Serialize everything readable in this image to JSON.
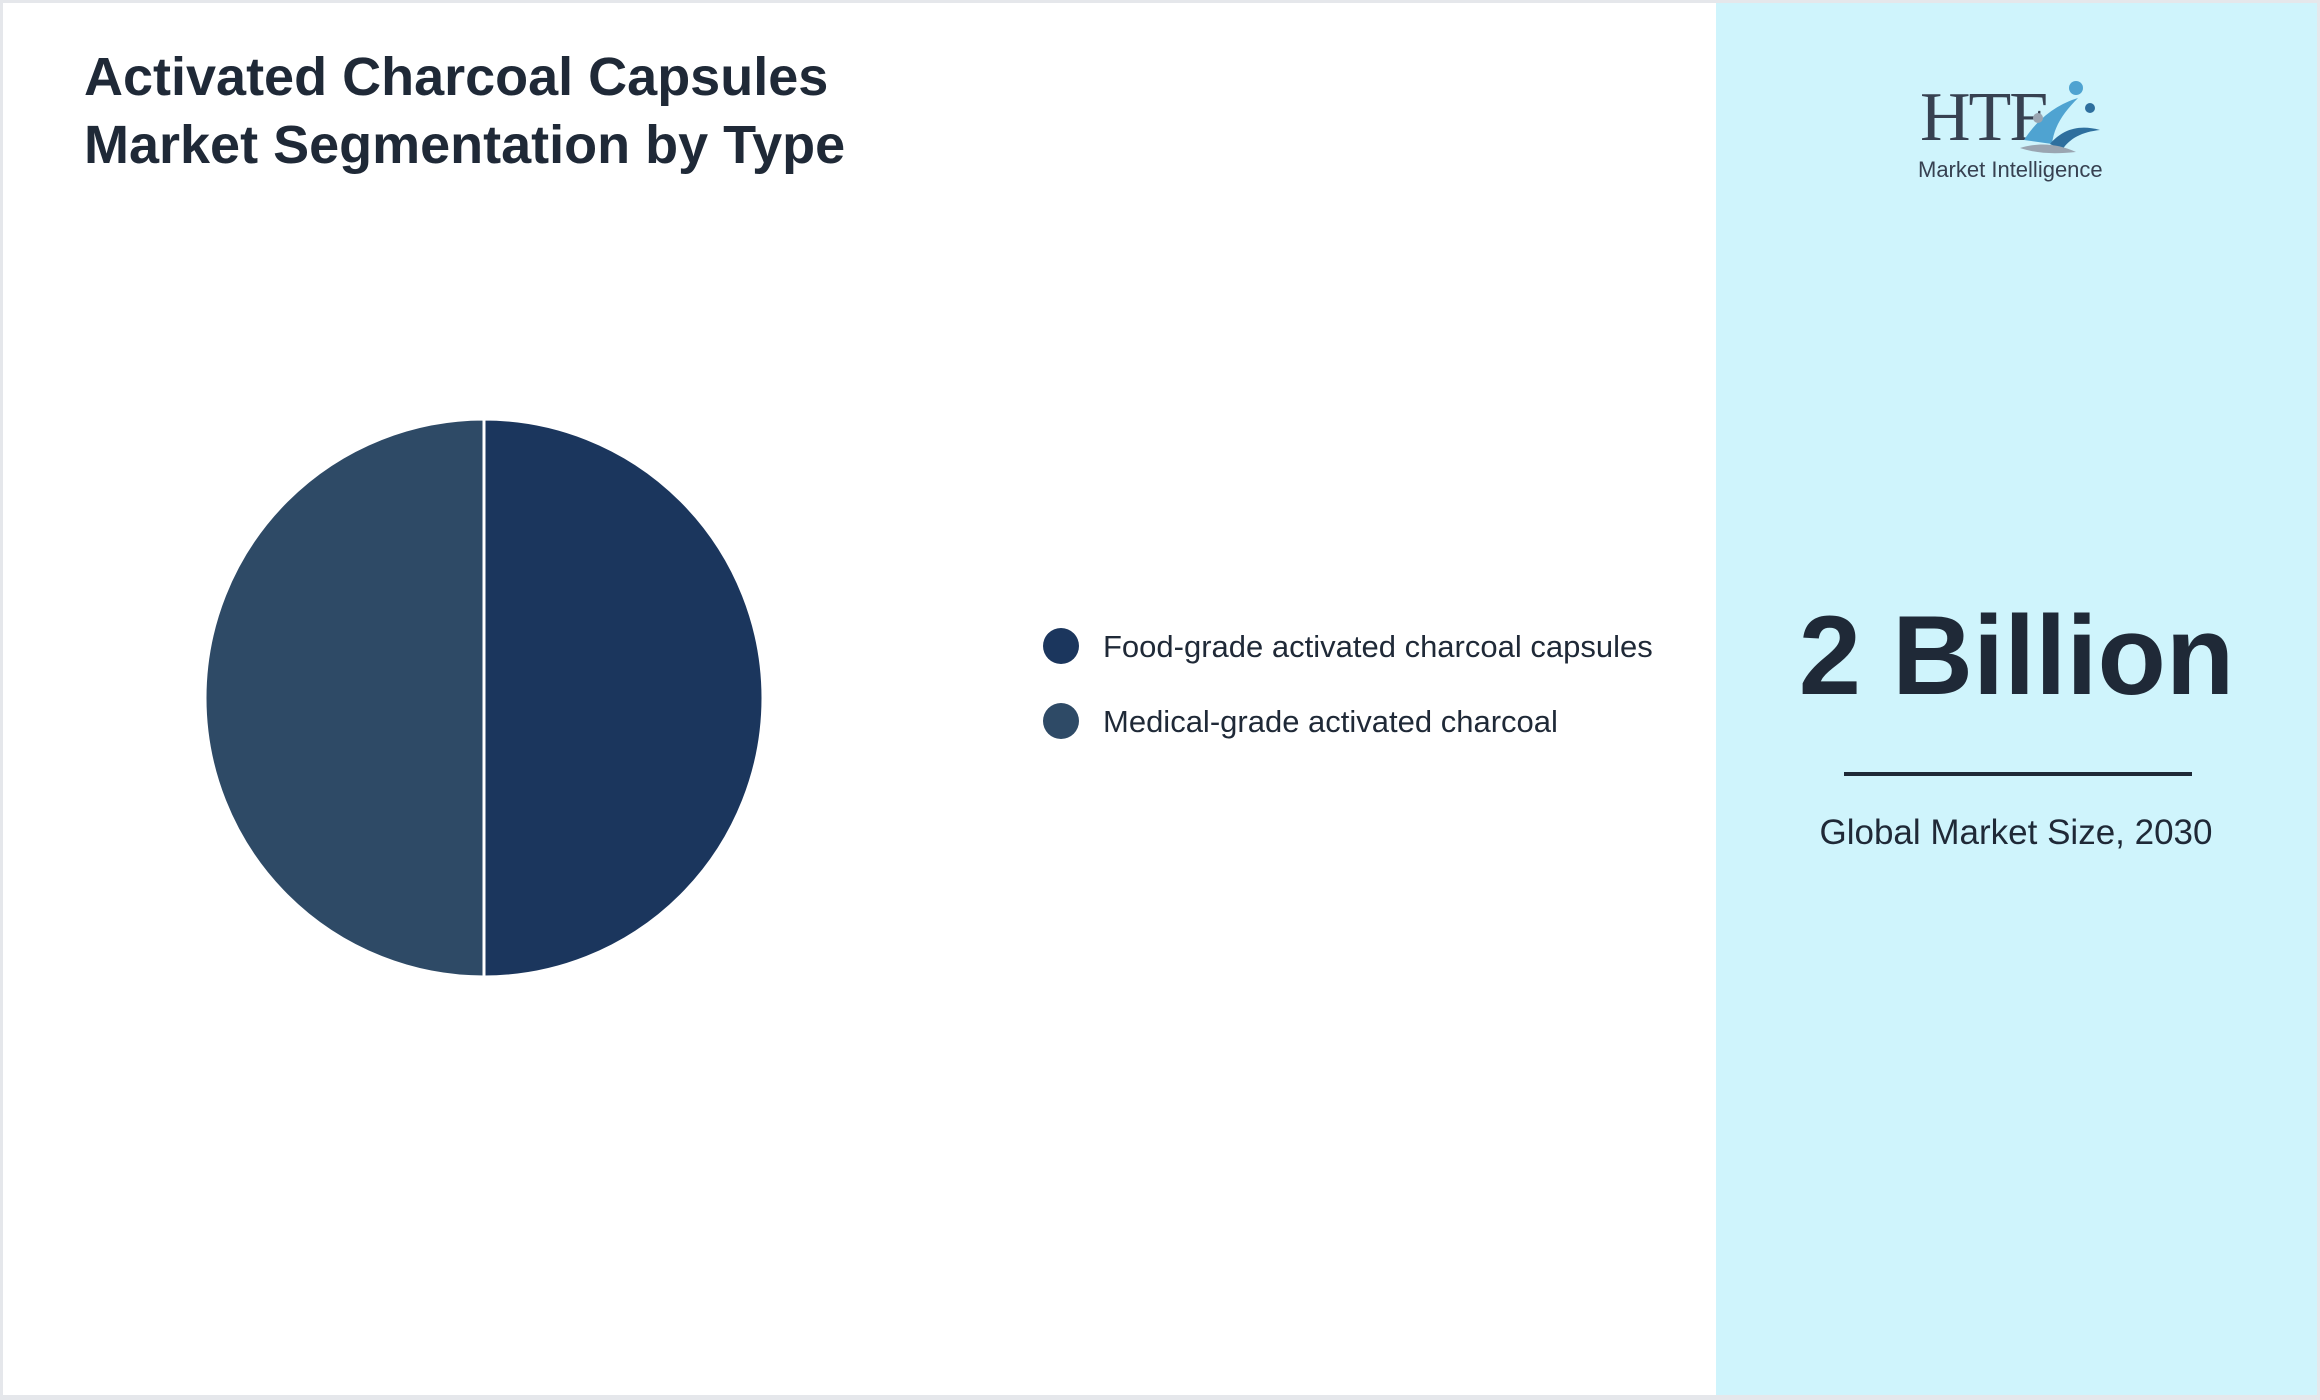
{
  "title": {
    "line1": "Activated Charcoal Capsules",
    "line2": "Market Segmentation by Type"
  },
  "chart_data": {
    "type": "pie",
    "categories": [
      "Food-grade activated charcoal capsules",
      "Medical-grade activated charcoal"
    ],
    "values": [
      50,
      50
    ],
    "colors": [
      "#1b365d",
      "#2e4a66"
    ],
    "legend_position": "right",
    "slice_border_color": "#ffffff"
  },
  "stat": {
    "value": "2 Billion",
    "label": "Global Market Size, 2030"
  },
  "logo": {
    "letters": "HTF",
    "subtext": "Market Intelligence",
    "icon": "htf-swimmer-logo-icon"
  },
  "colors": {
    "panel_accent": "#cff4fc",
    "text_dark": "#1f2937"
  }
}
